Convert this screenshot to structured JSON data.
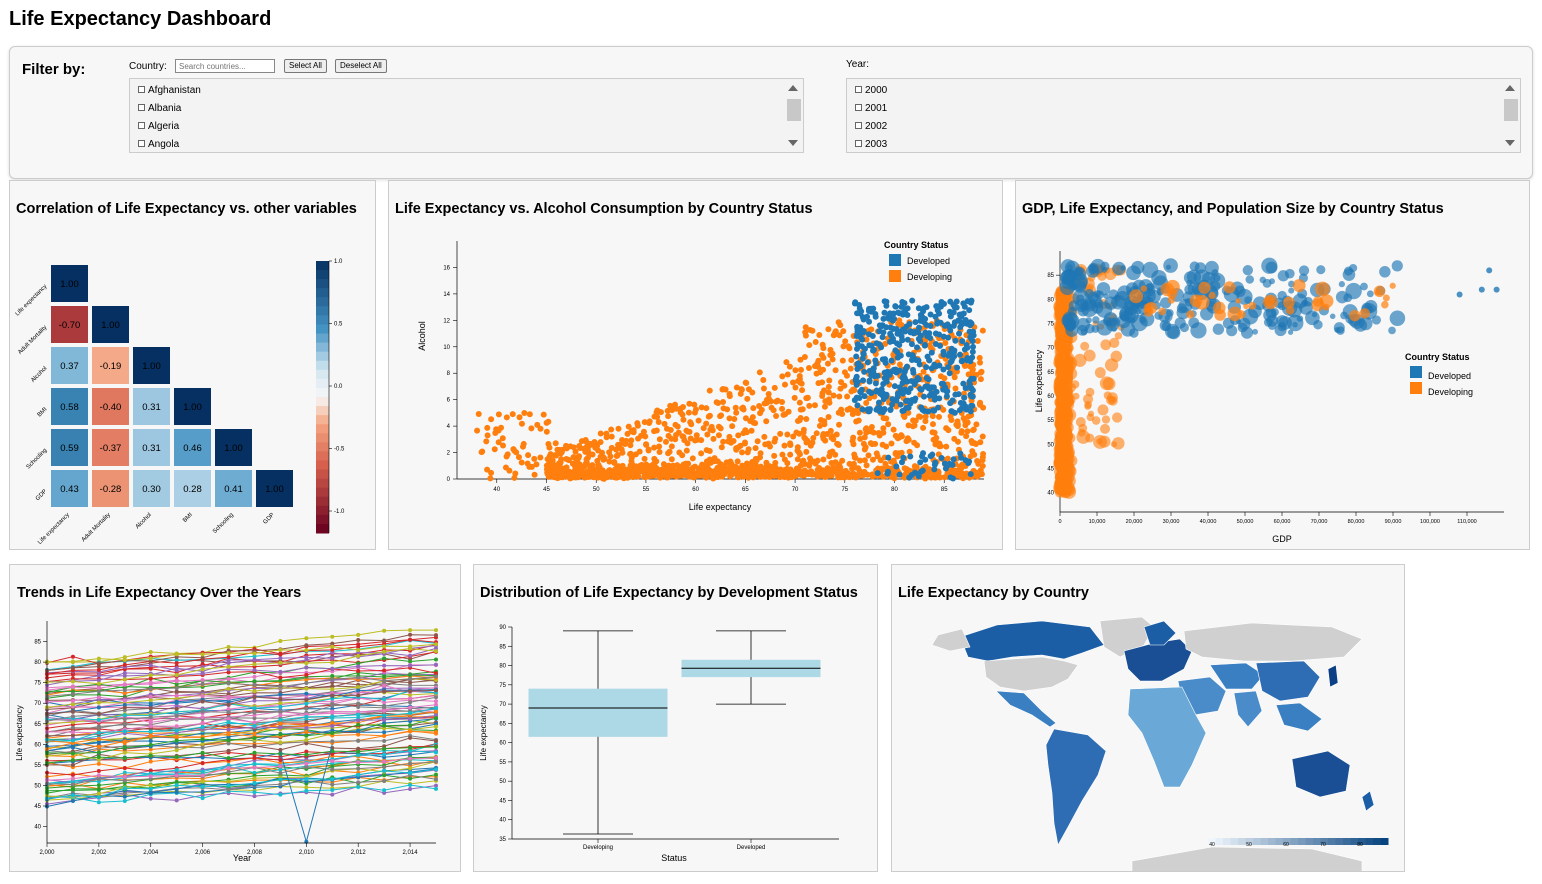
{
  "header": {
    "title": "Life Expectancy Dashboard"
  },
  "filter": {
    "title": "Filter by:",
    "country_label": "Country:",
    "search_placeholder": "Search countries...",
    "select_all": "Select All",
    "deselect_all": "Deselect All",
    "countries": [
      "Afghanistan",
      "Albania",
      "Algeria",
      "Angola"
    ],
    "year_label": "Year:",
    "years": [
      "2000",
      "2001",
      "2002",
      "2003"
    ]
  },
  "panels": {
    "correlation_title": "Correlation of Life Expectancy vs. other variables",
    "alcohol_title": "Life Expectancy vs. Alcohol Consumption by Country Status",
    "gdp_title": "GDP, Life Expectancy, and Population Size by Country Status",
    "trends_title": "Trends in Life Expectancy Over the Years",
    "distribution_title": "Distribution of Life Expectancy by Development Status",
    "map_title": "Life Expectancy by Country"
  },
  "colors": {
    "developed": "#1f77b4",
    "developing": "#ff7f0e",
    "box_fill": "#add8e6"
  },
  "chart_data": [
    {
      "id": "correlation",
      "type": "heatmap",
      "variables": [
        "Life expectancy",
        "Adult Mortality",
        "Alcohol",
        "BMI",
        "Schooling",
        "GDP"
      ],
      "matrix": [
        [
          1.0
        ],
        [
          -0.7,
          1.0
        ],
        [
          0.37,
          -0.19,
          1.0
        ],
        [
          0.58,
          -0.4,
          0.31,
          1.0
        ],
        [
          0.59,
          -0.37,
          0.31,
          0.46,
          1.0
        ],
        [
          0.43,
          -0.28,
          0.3,
          0.28,
          0.41,
          1.0
        ]
      ],
      "colorbar_ticks": [
        "1.0",
        "0.5",
        "0.0",
        "-0.5",
        "-1.0"
      ],
      "colorbar_range": [
        -1,
        1
      ]
    },
    {
      "id": "alcohol",
      "type": "scatter",
      "xlabel": "Life expectancy",
      "ylabel": "Alcohol",
      "xlim": [
        36,
        89
      ],
      "ylim": [
        0,
        18
      ],
      "xticks": [
        "40",
        "45",
        "50",
        "55",
        "60",
        "65",
        "70",
        "75",
        "80",
        "85"
      ],
      "yticks": [
        "0",
        "2",
        "4",
        "6",
        "8",
        "10",
        "12",
        "14",
        "16"
      ],
      "legend_title": "Country Status",
      "legend": [
        "Developed",
        "Developing"
      ],
      "series": [
        {
          "name": "Developed",
          "x_range": [
            70,
            89
          ],
          "y_range": [
            0,
            14
          ],
          "approx_points": 500
        },
        {
          "name": "Developing",
          "x_range": [
            36,
            89
          ],
          "y_range": [
            0,
            18
          ],
          "approx_points": 2400
        }
      ]
    },
    {
      "id": "gdp",
      "type": "scatter",
      "xlabel": "GDP",
      "ylabel": "Life expectancy",
      "xlim": [
        0,
        120000
      ],
      "ylim": [
        36,
        90
      ],
      "xticks": [
        "0",
        "10,000",
        "20,000",
        "30,000",
        "40,000",
        "50,000",
        "60,000",
        "70,000",
        "80,000",
        "90,000",
        "100,000",
        "110,000"
      ],
      "yticks": [
        "40",
        "45",
        "50",
        "55",
        "60",
        "65",
        "70",
        "75",
        "80",
        "85"
      ],
      "legend_title": "Country Status",
      "legend": [
        "Developed",
        "Developing"
      ]
    },
    {
      "id": "trends",
      "type": "line",
      "xlabel": "Year",
      "ylabel": "Life expectancy",
      "xlim": [
        2000,
        2015
      ],
      "ylim": [
        36,
        90
      ],
      "xticks": [
        "2,000",
        "2,002",
        "2,004",
        "2,006",
        "2,008",
        "2,010",
        "2,012",
        "2,014"
      ],
      "yticks": [
        "40",
        "45",
        "50",
        "55",
        "60",
        "65",
        "70",
        "75",
        "80",
        "85"
      ]
    },
    {
      "id": "distribution",
      "type": "box",
      "xlabel": "Status",
      "ylabel": "Life expectancy",
      "ylim": [
        35,
        90
      ],
      "yticks": [
        "35",
        "40",
        "45",
        "50",
        "55",
        "60",
        "65",
        "70",
        "75",
        "80",
        "85",
        "90"
      ],
      "categories": [
        "Developing",
        "Developed"
      ],
      "boxes": [
        {
          "min": 36.3,
          "q1": 61.5,
          "median": 69.0,
          "q3": 74.0,
          "max": 89.0
        },
        {
          "min": 70.0,
          "q1": 77.0,
          "median": 79.3,
          "q3": 81.5,
          "max": 89.0
        }
      ]
    },
    {
      "id": "map",
      "type": "choropleth",
      "legend_ticks": [
        "40",
        "50",
        "60",
        "70",
        "80"
      ]
    }
  ]
}
